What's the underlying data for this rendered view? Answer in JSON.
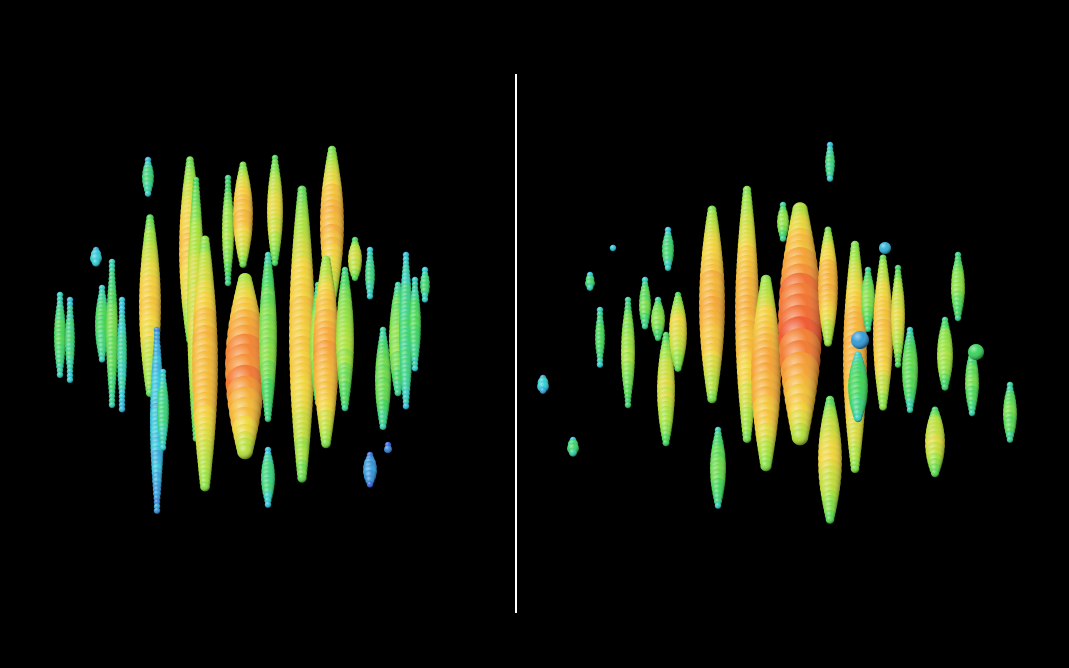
{
  "image": {
    "description_free": true,
    "background_color": "#000000",
    "divider_color": "#ffffff",
    "panels": [
      {
        "name": "event-display-left",
        "center_hue": "red"
      },
      {
        "name": "event-display-right",
        "center_hue": "red"
      }
    ],
    "color_scale": [
      "#2a4fd6",
      "#22c8d8",
      "#2fd24a",
      "#9be02a",
      "#f2d22a",
      "#f59a22",
      "#ee3a1e"
    ]
  }
}
